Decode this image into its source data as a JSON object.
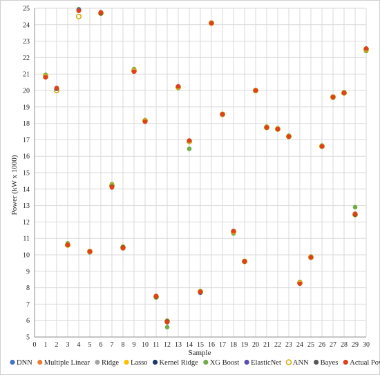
{
  "chart_data": {
    "type": "scatter",
    "title": "",
    "xlabel": "Sample",
    "ylabel": "Power (kW x 1000)",
    "xlim": [
      0,
      30
    ],
    "ylim": [
      5,
      25
    ],
    "xticks": [
      0,
      1,
      2,
      3,
      4,
      5,
      6,
      7,
      8,
      9,
      10,
      11,
      12,
      13,
      14,
      15,
      16,
      17,
      18,
      19,
      20,
      21,
      22,
      23,
      24,
      25,
      26,
      27,
      28,
      29,
      30
    ],
    "yticks": [
      5,
      6,
      7,
      8,
      9,
      10,
      11,
      12,
      13,
      14,
      15,
      16,
      17,
      18,
      19,
      20,
      21,
      22,
      23,
      24,
      25
    ],
    "grid": true,
    "legend_position": "bottom",
    "x": [
      1,
      2,
      3,
      4,
      5,
      6,
      7,
      8,
      9,
      10,
      11,
      12,
      13,
      14,
      15,
      16,
      17,
      18,
      19,
      20,
      21,
      22,
      23,
      24,
      25,
      26,
      27,
      28,
      29,
      30
    ],
    "series": [
      {
        "name": "DNN",
        "color": "#4472c4",
        "values": [
          20.85,
          20.1,
          10.65,
          24.9,
          10.2,
          24.7,
          14.2,
          10.45,
          21.2,
          18.15,
          7.45,
          5.95,
          20.2,
          16.9,
          7.75,
          24.1,
          18.55,
          11.4,
          9.6,
          20.0,
          17.75,
          17.65,
          17.2,
          8.3,
          9.85,
          16.6,
          19.6,
          19.85,
          12.45,
          22.5
        ]
      },
      {
        "name": "Multiple Linear",
        "color": "#ed7d31",
        "values": [
          20.85,
          20.1,
          10.6,
          24.9,
          10.2,
          24.7,
          14.2,
          10.45,
          21.2,
          18.15,
          7.45,
          5.95,
          20.2,
          16.9,
          7.75,
          24.1,
          18.55,
          11.4,
          9.6,
          20.0,
          17.75,
          17.65,
          17.2,
          8.3,
          9.85,
          16.6,
          19.6,
          19.85,
          12.45,
          22.5
        ]
      },
      {
        "name": "Ridge",
        "color": "#a5a5a5",
        "values": [
          20.85,
          20.1,
          10.6,
          24.9,
          10.2,
          24.7,
          14.2,
          10.45,
          21.2,
          18.15,
          7.45,
          6.0,
          20.2,
          16.9,
          7.75,
          24.1,
          18.55,
          11.4,
          9.6,
          20.0,
          17.75,
          17.65,
          17.2,
          8.3,
          9.85,
          16.6,
          19.6,
          19.85,
          12.45,
          22.5
        ]
      },
      {
        "name": "Lasso",
        "color": "#ffc000",
        "values": [
          20.85,
          20.05,
          10.6,
          24.9,
          10.2,
          24.7,
          14.2,
          10.45,
          21.2,
          18.15,
          7.45,
          5.95,
          20.2,
          16.9,
          7.75,
          24.1,
          18.55,
          11.4,
          9.6,
          20.0,
          17.75,
          17.65,
          17.2,
          8.3,
          9.85,
          16.6,
          19.6,
          19.85,
          12.45,
          22.5
        ]
      },
      {
        "name": "Kernel Ridge",
        "color": "#1f3864",
        "values": [
          20.85,
          20.1,
          10.6,
          24.9,
          10.2,
          24.7,
          14.2,
          10.45,
          21.2,
          18.15,
          7.45,
          5.95,
          20.2,
          16.9,
          7.75,
          24.1,
          18.55,
          11.4,
          9.6,
          20.0,
          17.75,
          17.65,
          17.2,
          8.3,
          9.85,
          16.6,
          19.6,
          19.85,
          12.45,
          22.5
        ]
      },
      {
        "name": "XG Boost",
        "color": "#70ad47",
        "values": [
          20.95,
          20.15,
          10.7,
          24.95,
          10.15,
          24.75,
          14.3,
          10.5,
          21.3,
          18.2,
          7.4,
          5.6,
          20.15,
          16.45,
          7.8,
          24.1,
          18.55,
          11.3,
          9.6,
          20.0,
          17.8,
          17.7,
          17.25,
          8.35,
          9.9,
          16.65,
          19.55,
          19.9,
          12.9,
          22.4
        ]
      },
      {
        "name": "ElasticNet",
        "color": "#5b4fb0",
        "values": [
          20.85,
          20.1,
          10.6,
          24.9,
          10.2,
          24.7,
          14.2,
          10.45,
          21.2,
          18.15,
          7.45,
          5.95,
          20.2,
          16.9,
          7.75,
          24.1,
          18.55,
          11.4,
          9.6,
          20.0,
          17.75,
          17.65,
          17.2,
          8.3,
          9.85,
          16.6,
          19.6,
          19.85,
          12.45,
          22.5
        ]
      },
      {
        "name": "ANN",
        "color": "#ffffff",
        "stroke": "#d4a500",
        "values": [
          20.85,
          20.0,
          10.6,
          24.5,
          10.2,
          24.7,
          14.2,
          10.45,
          21.2,
          18.15,
          7.45,
          5.95,
          20.2,
          16.9,
          7.75,
          24.1,
          18.55,
          11.4,
          9.6,
          20.0,
          17.75,
          17.65,
          17.2,
          8.3,
          9.85,
          16.6,
          19.6,
          19.85,
          12.45,
          22.5
        ]
      },
      {
        "name": "Bayes",
        "color": "#595959",
        "values": [
          20.8,
          20.1,
          10.6,
          24.85,
          10.2,
          24.7,
          14.15,
          10.45,
          21.15,
          18.1,
          7.45,
          5.95,
          20.25,
          16.95,
          7.7,
          24.1,
          18.55,
          11.45,
          9.6,
          20.0,
          17.75,
          17.65,
          17.2,
          8.25,
          9.85,
          16.6,
          19.6,
          19.85,
          12.45,
          22.55
        ]
      },
      {
        "name": "Actual Power",
        "color": "#e0401c",
        "values": [
          20.8,
          20.15,
          10.6,
          24.85,
          10.2,
          24.75,
          14.1,
          10.4,
          21.15,
          18.1,
          7.5,
          5.9,
          20.25,
          16.95,
          7.75,
          24.1,
          18.55,
          11.45,
          9.6,
          20.0,
          17.75,
          17.65,
          17.2,
          8.25,
          9.85,
          16.6,
          19.6,
          19.85,
          12.5,
          22.55
        ]
      }
    ]
  }
}
